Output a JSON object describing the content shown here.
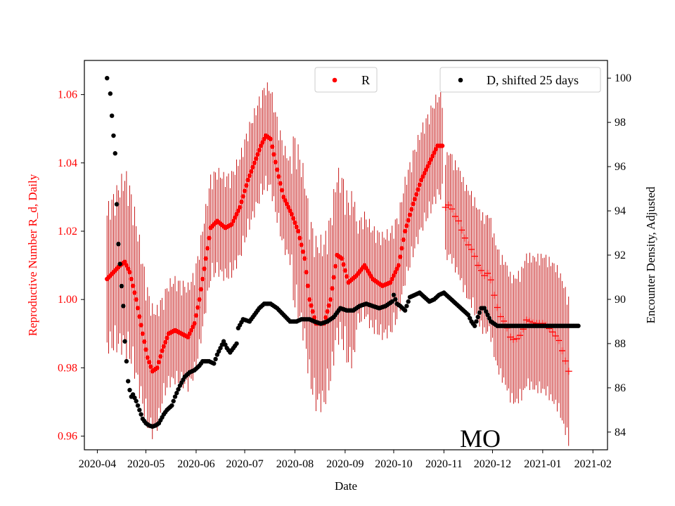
{
  "chart_data": {
    "type": "scatter",
    "title": "",
    "annotation": "MO",
    "xlabel": "Date",
    "ylabel_left": "Reproductive Number R_d, Daily",
    "ylabel_right": "Encounter Density, Adjusted",
    "x_ticks": [
      "2020-04",
      "2020-05",
      "2020-06",
      "2020-07",
      "2020-08",
      "2020-09",
      "2020-10",
      "2020-11",
      "2020-12",
      "2021-01",
      "2021-02"
    ],
    "x_range_days": [
      -8,
      315
    ],
    "ylim_left": [
      0.956,
      1.07
    ],
    "ylim_right": [
      83.2,
      100.8
    ],
    "y_ticks_left": [
      "0.96",
      "0.98",
      "1.00",
      "1.02",
      "1.04",
      "1.06"
    ],
    "y_ticks_right": [
      "84",
      "86",
      "88",
      "90",
      "92",
      "94",
      "96",
      "98",
      "100"
    ],
    "legend": [
      {
        "label": "R",
        "color": "#ff0000",
        "position": "top-center"
      },
      {
        "label": "D, shifted 25 days",
        "color": "#000000",
        "position": "top-right"
      }
    ],
    "colors": {
      "r": "#ff0000",
      "r_err": "#c00000",
      "d": "#000000"
    },
    "series_R_keypoints": [
      [
        6,
        1.006
      ],
      [
        10,
        1.008
      ],
      [
        14,
        1.01
      ],
      [
        17,
        1.011
      ],
      [
        20,
        1.008
      ],
      [
        24,
        1.0
      ],
      [
        28,
        0.99
      ],
      [
        31,
        0.983
      ],
      [
        34,
        0.979
      ],
      [
        37,
        0.98
      ],
      [
        40,
        0.985
      ],
      [
        44,
        0.99
      ],
      [
        48,
        0.991
      ],
      [
        52,
        0.99
      ],
      [
        56,
        0.989
      ],
      [
        60,
        0.993
      ],
      [
        63,
        1.0
      ],
      [
        67,
        1.012
      ],
      [
        70,
        1.021
      ],
      [
        74,
        1.023
      ],
      [
        79,
        1.021
      ],
      [
        83,
        1.022
      ],
      [
        88,
        1.027
      ],
      [
        93,
        1.035
      ],
      [
        97,
        1.04
      ],
      [
        101,
        1.045
      ],
      [
        104,
        1.048
      ],
      [
        107,
        1.047
      ],
      [
        111,
        1.038
      ],
      [
        115,
        1.03
      ],
      [
        120,
        1.025
      ],
      [
        124,
        1.02
      ],
      [
        128,
        1.012
      ],
      [
        131,
        1.0
      ],
      [
        135,
        0.993
      ],
      [
        140,
        0.993
      ],
      [
        144,
        1.0
      ],
      [
        148,
        1.013
      ],
      [
        151,
        1.012
      ],
      [
        155,
        1.005
      ],
      [
        160,
        1.007
      ],
      [
        165,
        1.01
      ],
      [
        170,
        1.006
      ],
      [
        176,
        1.004
      ],
      [
        181,
        1.005
      ],
      [
        186,
        1.01
      ],
      [
        190,
        1.02
      ],
      [
        195,
        1.028
      ],
      [
        200,
        1.035
      ],
      [
        205,
        1.04
      ],
      [
        210,
        1.045
      ],
      [
        213,
        1.045
      ]
    ],
    "series_R_forecast": [
      [
        215,
        1.027
      ],
      [
        218,
        1.028
      ],
      [
        220,
        1.025
      ],
      [
        223,
        1.023
      ],
      [
        226,
        1.019
      ],
      [
        229,
        1.016
      ],
      [
        232,
        1.014
      ],
      [
        235,
        1.01
      ],
      [
        239,
        1.007
      ],
      [
        242,
        1.008
      ],
      [
        246,
        0.999
      ],
      [
        249,
        0.995
      ],
      [
        252,
        0.993
      ],
      [
        255,
        0.989
      ],
      [
        258,
        0.988
      ],
      [
        262,
        0.99
      ],
      [
        265,
        0.994
      ],
      [
        270,
        0.993
      ],
      [
        276,
        0.993
      ],
      [
        282,
        0.99
      ],
      [
        285,
        0.988
      ],
      [
        287,
        0.985
      ],
      [
        289,
        0.982
      ],
      [
        291,
        0.979
      ]
    ],
    "series_D_keypoints": [
      [
        6,
        100
      ],
      [
        8,
        99.3
      ],
      [
        9,
        98.3
      ],
      [
        10,
        97.4
      ],
      [
        11,
        96.6
      ],
      [
        12,
        94.3
      ],
      [
        13,
        92.5
      ],
      [
        14,
        91.6
      ],
      [
        15,
        90.6
      ],
      [
        16,
        89.7
      ],
      [
        17,
        88.1
      ],
      [
        18,
        87.2
      ],
      [
        19,
        86.3
      ],
      [
        20,
        85.9
      ],
      [
        21,
        85.6
      ],
      [
        22,
        85.7
      ],
      [
        24,
        85.4
      ],
      [
        26,
        85.0
      ],
      [
        28,
        84.6
      ],
      [
        30,
        84.4
      ],
      [
        32,
        84.3
      ],
      [
        34,
        84.25
      ],
      [
        36,
        84.3
      ],
      [
        38,
        84.4
      ],
      [
        41,
        84.8
      ],
      [
        43,
        85.0
      ],
      [
        46,
        85.2
      ],
      [
        48,
        85.6
      ],
      [
        51,
        86.1
      ],
      [
        54,
        86.5
      ],
      [
        57,
        86.7
      ],
      [
        60,
        86.8
      ],
      [
        63,
        87.0
      ],
      [
        65,
        87.2
      ],
      [
        69,
        87.2
      ],
      [
        72,
        87.1
      ],
      [
        74,
        87.5
      ],
      [
        76,
        87.8
      ],
      [
        78,
        88.1
      ],
      [
        80,
        87.8
      ],
      [
        82,
        87.6
      ],
      [
        84,
        87.8
      ],
      [
        86,
        88.0
      ],
      [
        87,
        88.7
      ],
      [
        90,
        89.1
      ],
      [
        94,
        89.0
      ],
      [
        97,
        89.3
      ],
      [
        100,
        89.6
      ],
      [
        103,
        89.8
      ],
      [
        107,
        89.8
      ],
      [
        111,
        89.6
      ],
      [
        115,
        89.3
      ],
      [
        119,
        89.0
      ],
      [
        123,
        89.0
      ],
      [
        126,
        89.1
      ],
      [
        131,
        89.1
      ],
      [
        134,
        89.0
      ],
      [
        138,
        88.9
      ],
      [
        142,
        89.0
      ],
      [
        146,
        89.2
      ],
      [
        150,
        89.6
      ],
      [
        154,
        89.5
      ],
      [
        158,
        89.5
      ],
      [
        162,
        89.7
      ],
      [
        166,
        89.8
      ],
      [
        170,
        89.7
      ],
      [
        174,
        89.6
      ],
      [
        178,
        89.7
      ],
      [
        182,
        89.9
      ],
      [
        183,
        90.2
      ],
      [
        185,
        89.8
      ],
      [
        187,
        89.7
      ],
      [
        190,
        89.5
      ],
      [
        193,
        90.1
      ],
      [
        196,
        90.2
      ],
      [
        199,
        90.3
      ],
      [
        202,
        90.1
      ],
      [
        205,
        89.9
      ],
      [
        208,
        90.0
      ],
      [
        211,
        90.2
      ],
      [
        214,
        90.3
      ],
      [
        217,
        90.1
      ],
      [
        220,
        89.9
      ],
      [
        223,
        89.7
      ],
      [
        226,
        89.5
      ],
      [
        229,
        89.3
      ],
      [
        231,
        89.0
      ],
      [
        233,
        88.8
      ],
      [
        235,
        89.2
      ],
      [
        237,
        89.6
      ],
      [
        239,
        89.6
      ],
      [
        241,
        89.3
      ],
      [
        243,
        89.0
      ],
      [
        245,
        88.9
      ],
      [
        247,
        88.8
      ],
      [
        250,
        88.8
      ],
      [
        255,
        88.8
      ],
      [
        260,
        88.8
      ],
      [
        270,
        88.8
      ],
      [
        280,
        88.8
      ],
      [
        290,
        88.8
      ],
      [
        297,
        88.8
      ]
    ]
  }
}
